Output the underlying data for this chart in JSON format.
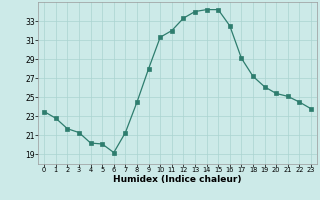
{
  "x": [
    0,
    1,
    2,
    3,
    4,
    5,
    6,
    7,
    8,
    9,
    10,
    11,
    12,
    13,
    14,
    15,
    16,
    17,
    18,
    19,
    20,
    21,
    22,
    23
  ],
  "y": [
    23.5,
    22.8,
    21.7,
    21.3,
    20.2,
    20.1,
    19.2,
    21.3,
    24.5,
    28.0,
    31.3,
    32.0,
    33.3,
    34.0,
    34.2,
    34.2,
    32.5,
    29.1,
    27.2,
    26.1,
    25.4,
    25.1,
    24.5,
    23.8
  ],
  "line_color": "#2e7d6e",
  "marker": "s",
  "marker_size": 2.2,
  "bg_color": "#cceae8",
  "grid_color": "#aad4d0",
  "xlabel": "Humidex (Indice chaleur)",
  "ylim": [
    18,
    35
  ],
  "xlim": [
    -0.5,
    23.5
  ],
  "yticks": [
    19,
    21,
    23,
    25,
    27,
    29,
    31,
    33
  ],
  "xtick_labels": [
    "0",
    "1",
    "2",
    "3",
    "4",
    "5",
    "6",
    "7",
    "8",
    "9",
    "10",
    "11",
    "12",
    "13",
    "14",
    "15",
    "16",
    "17",
    "18",
    "19",
    "20",
    "21",
    "22",
    "23"
  ],
  "xlabel_fontsize": 6.5,
  "ytick_fontsize": 5.5,
  "xtick_fontsize": 4.8
}
